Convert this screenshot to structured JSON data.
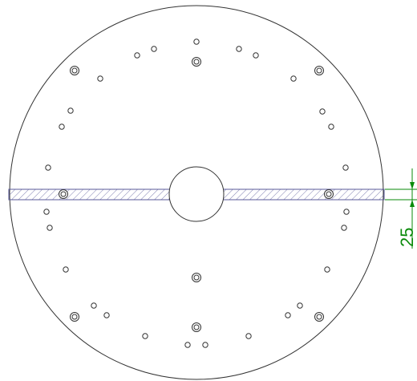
{
  "drawing": {
    "dimension": {
      "label": "25",
      "color": "#0a8a0a"
    },
    "colors": {
      "line": "#333333",
      "hatch": "#5a5a9a",
      "background": "#ffffff"
    }
  }
}
